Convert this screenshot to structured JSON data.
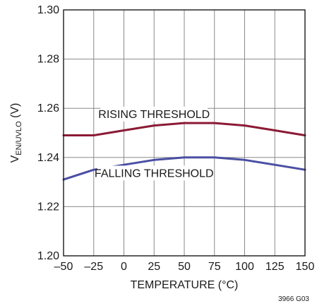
{
  "chart_data": {
    "type": "line",
    "xlabel": "TEMPERATURE (°C)",
    "ylabel": {
      "prefix": "V",
      "subscript": "EN/UVLO",
      "suffix": " (V)"
    },
    "xlim": [
      -50,
      150
    ],
    "ylim": [
      1.2,
      1.3
    ],
    "x_ticks": [
      -50,
      -25,
      0,
      25,
      50,
      75,
      100,
      125,
      150
    ],
    "x_tick_labels": [
      "–50",
      "–25",
      "0",
      "25",
      "50",
      "75",
      "100",
      "125",
      "150"
    ],
    "y_ticks": [
      1.2,
      1.22,
      1.24,
      1.26,
      1.28,
      1.3
    ],
    "y_tick_labels": [
      "1.20",
      "1.22",
      "1.24",
      "1.26",
      "1.28",
      "1.30"
    ],
    "grid": true,
    "series": [
      {
        "name": "RISING THRESHOLD",
        "color": "#8b1a35",
        "x": [
          -50,
          -25,
          0,
          25,
          50,
          75,
          100,
          125,
          150
        ],
        "y": [
          1.249,
          1.249,
          1.251,
          1.253,
          1.254,
          1.254,
          1.253,
          1.251,
          1.249
        ]
      },
      {
        "name": "FALLING THRESHOLD",
        "color": "#4a4fa3",
        "x": [
          -50,
          -25,
          0,
          25,
          50,
          75,
          100,
          125,
          150
        ],
        "y": [
          1.231,
          1.235,
          1.237,
          1.239,
          1.24,
          1.24,
          1.239,
          1.237,
          1.235
        ]
      }
    ],
    "figure_id": "3966 G03"
  }
}
